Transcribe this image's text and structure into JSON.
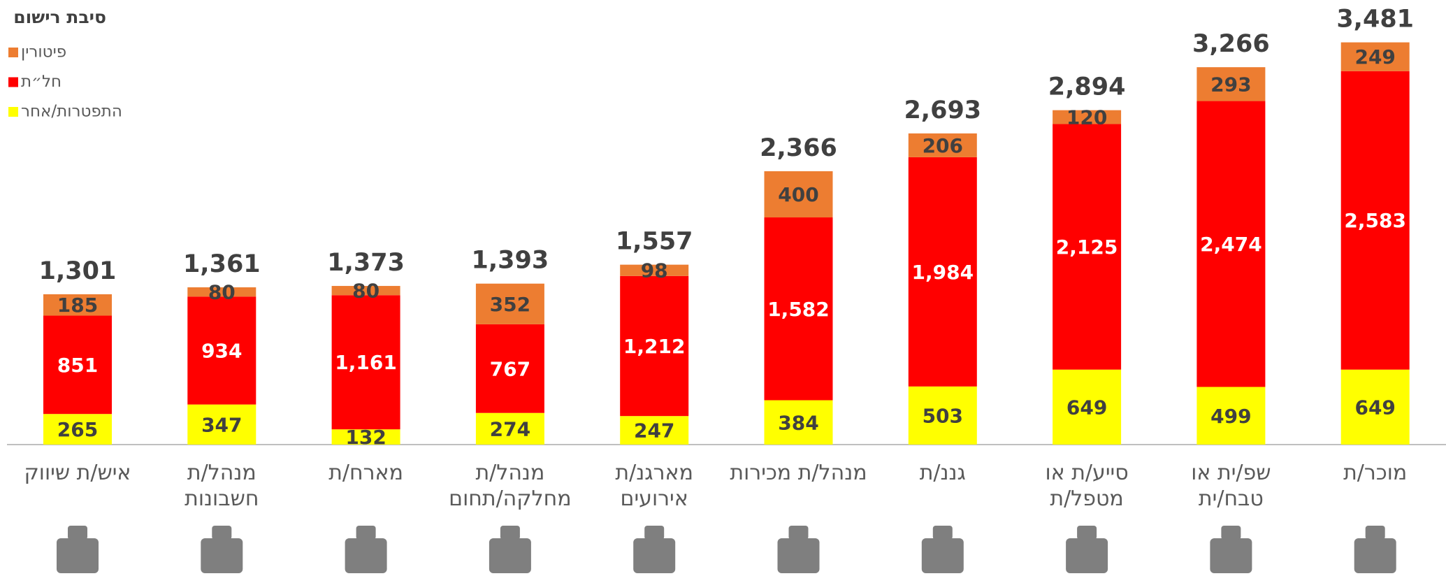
{
  "chart_data": {
    "type": "stacked_bar",
    "legend_title": "סיבת רישום",
    "legend_position": "top-left",
    "categories": [
      "איש/ת שיווק",
      "מנהל/ת\nחשבונות",
      "מארח/ת",
      "מנהל/ת\nמחלקה/תחום",
      "מארגנ/ת\nאירועים",
      "מנהל/ת מכירות",
      "גננ/ת",
      "סייע/ת או\nמטפל/ת",
      "שפ/ית או\nטבח/ית",
      "מוכר/ת"
    ],
    "series": [
      {
        "name": "התפטרות/אחר",
        "color": "#ffff00",
        "label_color": "#404040",
        "values": [
          265,
          347,
          132,
          274,
          247,
          384,
          503,
          649,
          499,
          649
        ],
        "value_labels": [
          "265",
          "347",
          "132",
          "274",
          "247",
          "384",
          "503",
          "649",
          "499",
          "649"
        ]
      },
      {
        "name": "חל״ת",
        "color": "#ff0000",
        "label_color": "#ffffff",
        "values": [
          851,
          934,
          1161,
          767,
          1212,
          1582,
          1984,
          2125,
          2474,
          2583
        ],
        "value_labels": [
          "851",
          "934",
          "1,161",
          "767",
          "1,212",
          "1,582",
          "1,984",
          "2,125",
          "2,474",
          "2,583"
        ]
      },
      {
        "name": "פיטורין",
        "color": "#ed7d31",
        "label_color": "#404040",
        "values": [
          185,
          80,
          80,
          352,
          98,
          400,
          206,
          120,
          293,
          249
        ],
        "value_labels": [
          "185",
          "80",
          "80",
          "352",
          "98",
          "400",
          "206",
          "120",
          "293",
          "249"
        ]
      }
    ],
    "totals": {
      "values": [
        1301,
        1361,
        1373,
        1393,
        1557,
        2366,
        2693,
        2894,
        3266,
        3481
      ],
      "value_labels": [
        "1,301",
        "1,361",
        "1,373",
        "1,393",
        "1,557",
        "2,366",
        "2,693",
        "2,894",
        "3,266",
        "3,481"
      ]
    }
  }
}
